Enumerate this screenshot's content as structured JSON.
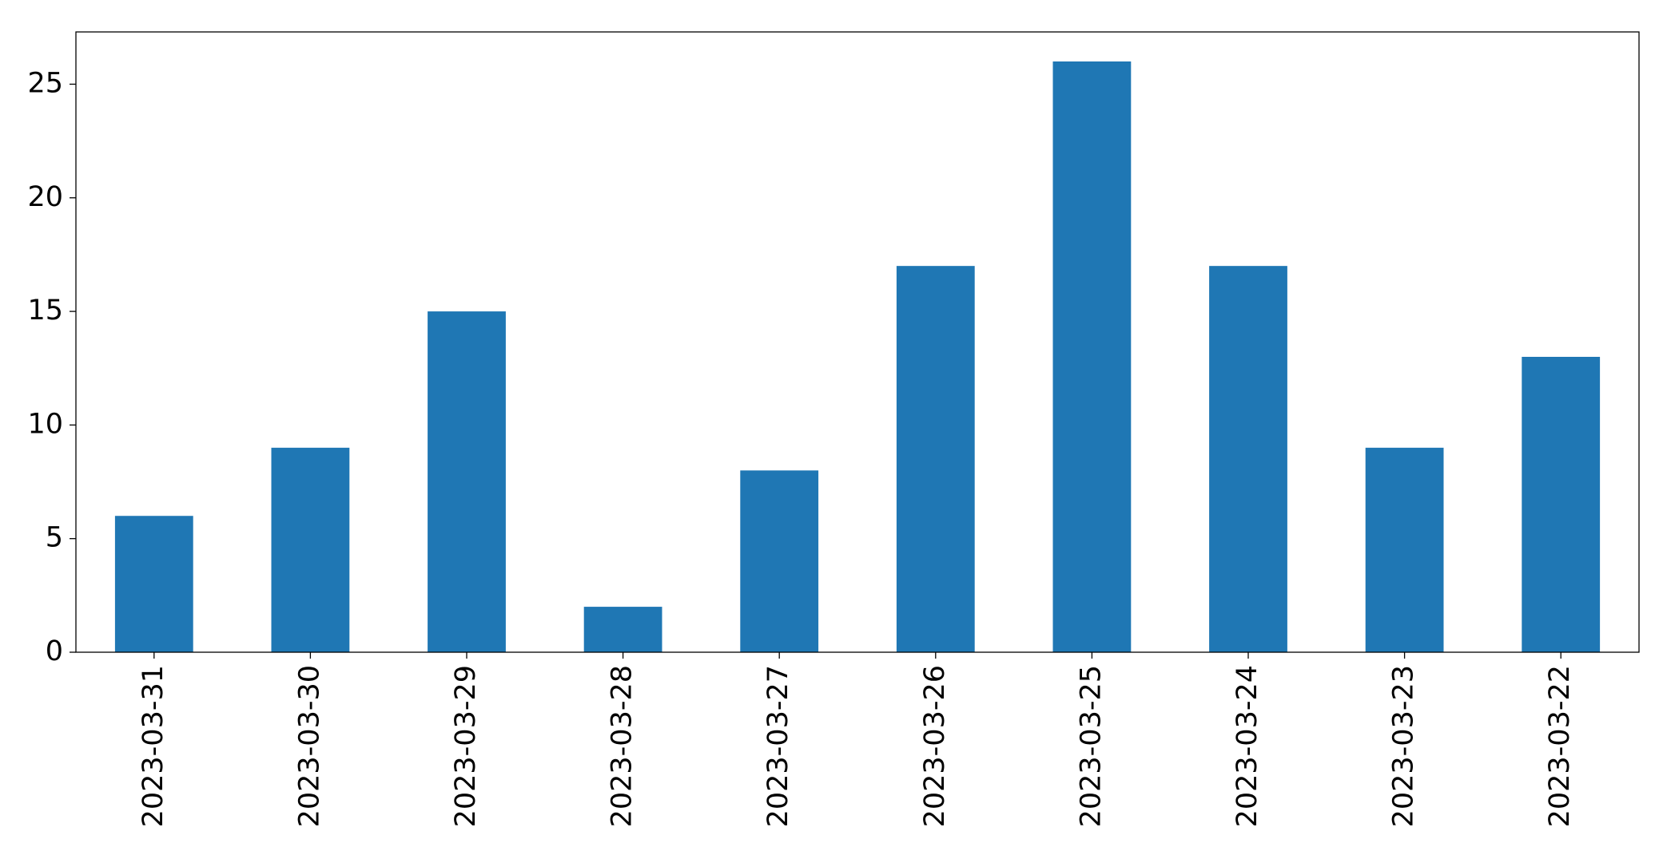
{
  "chart_data": {
    "type": "bar",
    "categories": [
      "2023-03-31",
      "2023-03-30",
      "2023-03-29",
      "2023-03-28",
      "2023-03-27",
      "2023-03-26",
      "2023-03-25",
      "2023-03-24",
      "2023-03-23",
      "2023-03-22"
    ],
    "values": [
      6,
      9,
      15,
      2,
      8,
      17,
      26,
      17,
      9,
      13
    ],
    "color": "#1f77b4",
    "ylim": [
      0,
      27.3
    ],
    "yticks": [
      0,
      5,
      10,
      15,
      20,
      25
    ],
    "grid": false
  }
}
